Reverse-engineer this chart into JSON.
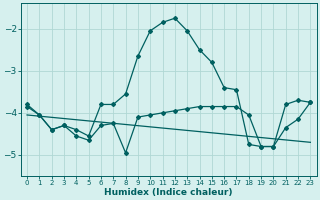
{
  "xlabel": "Humidex (Indice chaleur)",
  "bg_color": "#d6f0ee",
  "grid_color": "#b0d8d4",
  "line_color": "#006060",
  "xlim": [
    -0.5,
    23.5
  ],
  "ylim": [
    -5.5,
    -1.4
  ],
  "yticks": [
    -5,
    -4,
    -3,
    -2
  ],
  "xticks": [
    0,
    1,
    2,
    3,
    4,
    5,
    6,
    7,
    8,
    9,
    10,
    11,
    12,
    13,
    14,
    15,
    16,
    17,
    18,
    19,
    20,
    21,
    22,
    23
  ],
  "series1_x": [
    0,
    1,
    2,
    3,
    4,
    5,
    6,
    7,
    8,
    9,
    10,
    11,
    12,
    13,
    14,
    15,
    16,
    17,
    18,
    19,
    20,
    21,
    22,
    23
  ],
  "series1_y": [
    -3.8,
    -4.05,
    -4.4,
    -4.3,
    -4.4,
    -4.55,
    -3.8,
    -3.8,
    -3.55,
    -2.65,
    -2.05,
    -1.85,
    -1.75,
    -2.05,
    -2.5,
    -2.8,
    -3.4,
    -3.45,
    -4.75,
    -4.8,
    -4.8,
    -4.35,
    -4.15,
    -3.75
  ],
  "series2_x": [
    0,
    1,
    2,
    3,
    4,
    5,
    6,
    7,
    8,
    9,
    10,
    11,
    12,
    13,
    14,
    15,
    16,
    17,
    18,
    19,
    20,
    21,
    22,
    23
  ],
  "series2_y": [
    -3.85,
    -4.05,
    -4.4,
    -4.3,
    -4.55,
    -4.65,
    -4.3,
    -4.25,
    -4.95,
    -4.1,
    -4.05,
    -4.0,
    -3.95,
    -3.9,
    -3.85,
    -3.85,
    -3.85,
    -3.85,
    -4.05,
    -4.8,
    -4.8,
    -3.8,
    -3.7,
    -3.75
  ],
  "series3_x": [
    0,
    23
  ],
  "series3_y": [
    -4.05,
    -4.7
  ],
  "figsize": [
    3.2,
    2.0
  ],
  "dpi": 100,
  "marker": "D",
  "markersize": 2.0,
  "linewidth": 0.9,
  "xlabel_fontsize": 6.5,
  "xtick_fontsize": 5.0,
  "ytick_fontsize": 6.5
}
